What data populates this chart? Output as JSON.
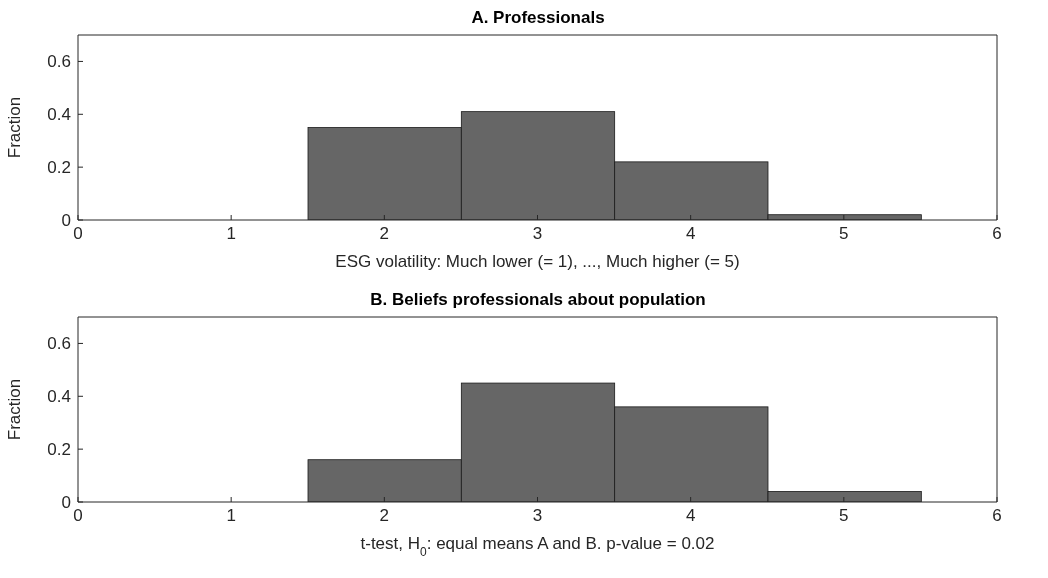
{
  "chart_data": [
    {
      "type": "histogram",
      "title": "A. Professionals",
      "xlabel": "ESG volatility: Much lower (= 1), ..., Much higher (= 5)",
      "ylabel": "Fraction",
      "bins": [
        1.5,
        2.5,
        3.5,
        4.5,
        5.5
      ],
      "values": [
        0.35,
        0.41,
        0.22,
        0.02
      ],
      "color": "#666666",
      "xlim": [
        0,
        6
      ],
      "xticks": [
        0,
        1,
        2,
        3,
        4,
        5,
        6
      ],
      "ylim": [
        0,
        0.7
      ],
      "yticks": [
        0,
        0.2,
        0.4,
        0.6
      ],
      "grid": false
    },
    {
      "type": "histogram",
      "title": "B. Beliefs professionals about population",
      "xlabel": "t-test, H$_{0}$: equal means A and B.  p-value = 0.02",
      "ylabel": "Fraction",
      "bins": [
        1.5,
        2.5,
        3.5,
        4.5,
        5.5
      ],
      "values": [
        0.16,
        0.45,
        0.36,
        0.04
      ],
      "color": "#666666",
      "xlim": [
        0,
        6
      ],
      "xticks": [
        0,
        1,
        2,
        3,
        4,
        5,
        6
      ],
      "ylim": [
        0,
        0.7
      ],
      "yticks": [
        0,
        0.2,
        0.4,
        0.6
      ],
      "grid": false
    }
  ]
}
